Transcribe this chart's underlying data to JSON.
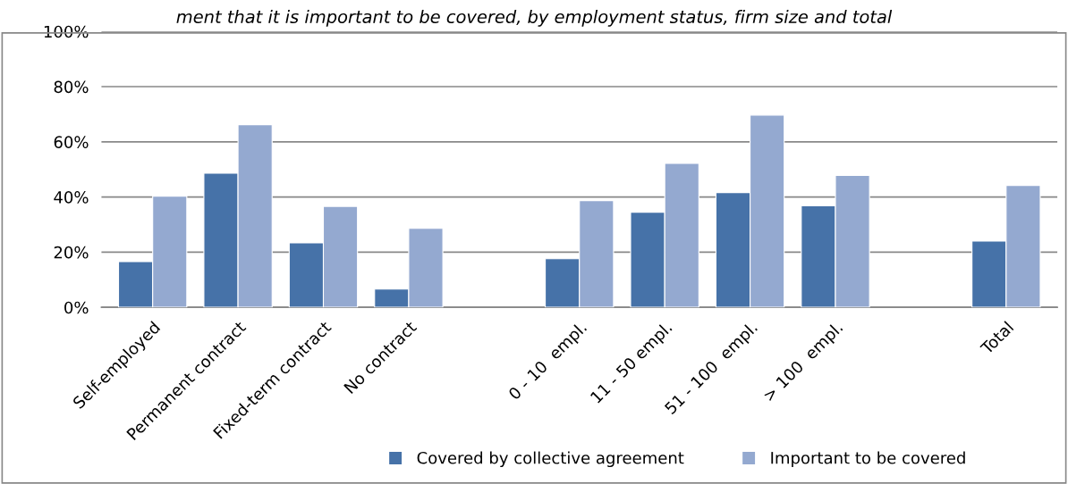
{
  "chart_data": {
    "type": "bar",
    "title": "ment that it is important to be covered, by employment status, firm size and total",
    "categories": [
      "Self-employed",
      "Permanent contract",
      "Fixed-term contract",
      "No contract",
      null,
      "0 - 10  empl.",
      "11 - 50 empl.",
      "51 - 100  empl.",
      "> 100  empl.",
      null,
      "Total"
    ],
    "series": [
      {
        "name": "Covered by collective agreement",
        "color": "#4672a8",
        "values": [
          16.6,
          48.6,
          23.4,
          6.6,
          null,
          17.6,
          34.5,
          41.6,
          36.8,
          null,
          24.0
        ]
      },
      {
        "name": "Important to be covered",
        "color": "#94a9d0",
        "values": [
          40.3,
          66.2,
          36.6,
          28.6,
          null,
          38.7,
          52.2,
          69.7,
          47.8,
          null,
          44.2
        ]
      }
    ],
    "ylim": [
      0,
      100
    ],
    "yticks": [
      {
        "value": 0,
        "label": "0%"
      },
      {
        "value": 20,
        "label": "20%"
      },
      {
        "value": 40,
        "label": "40%"
      },
      {
        "value": 60,
        "label": "60%"
      },
      {
        "value": 80,
        "label": "80%"
      },
      {
        "value": 100,
        "label": "100%"
      }
    ],
    "grid": "y",
    "legend": "bottom"
  }
}
